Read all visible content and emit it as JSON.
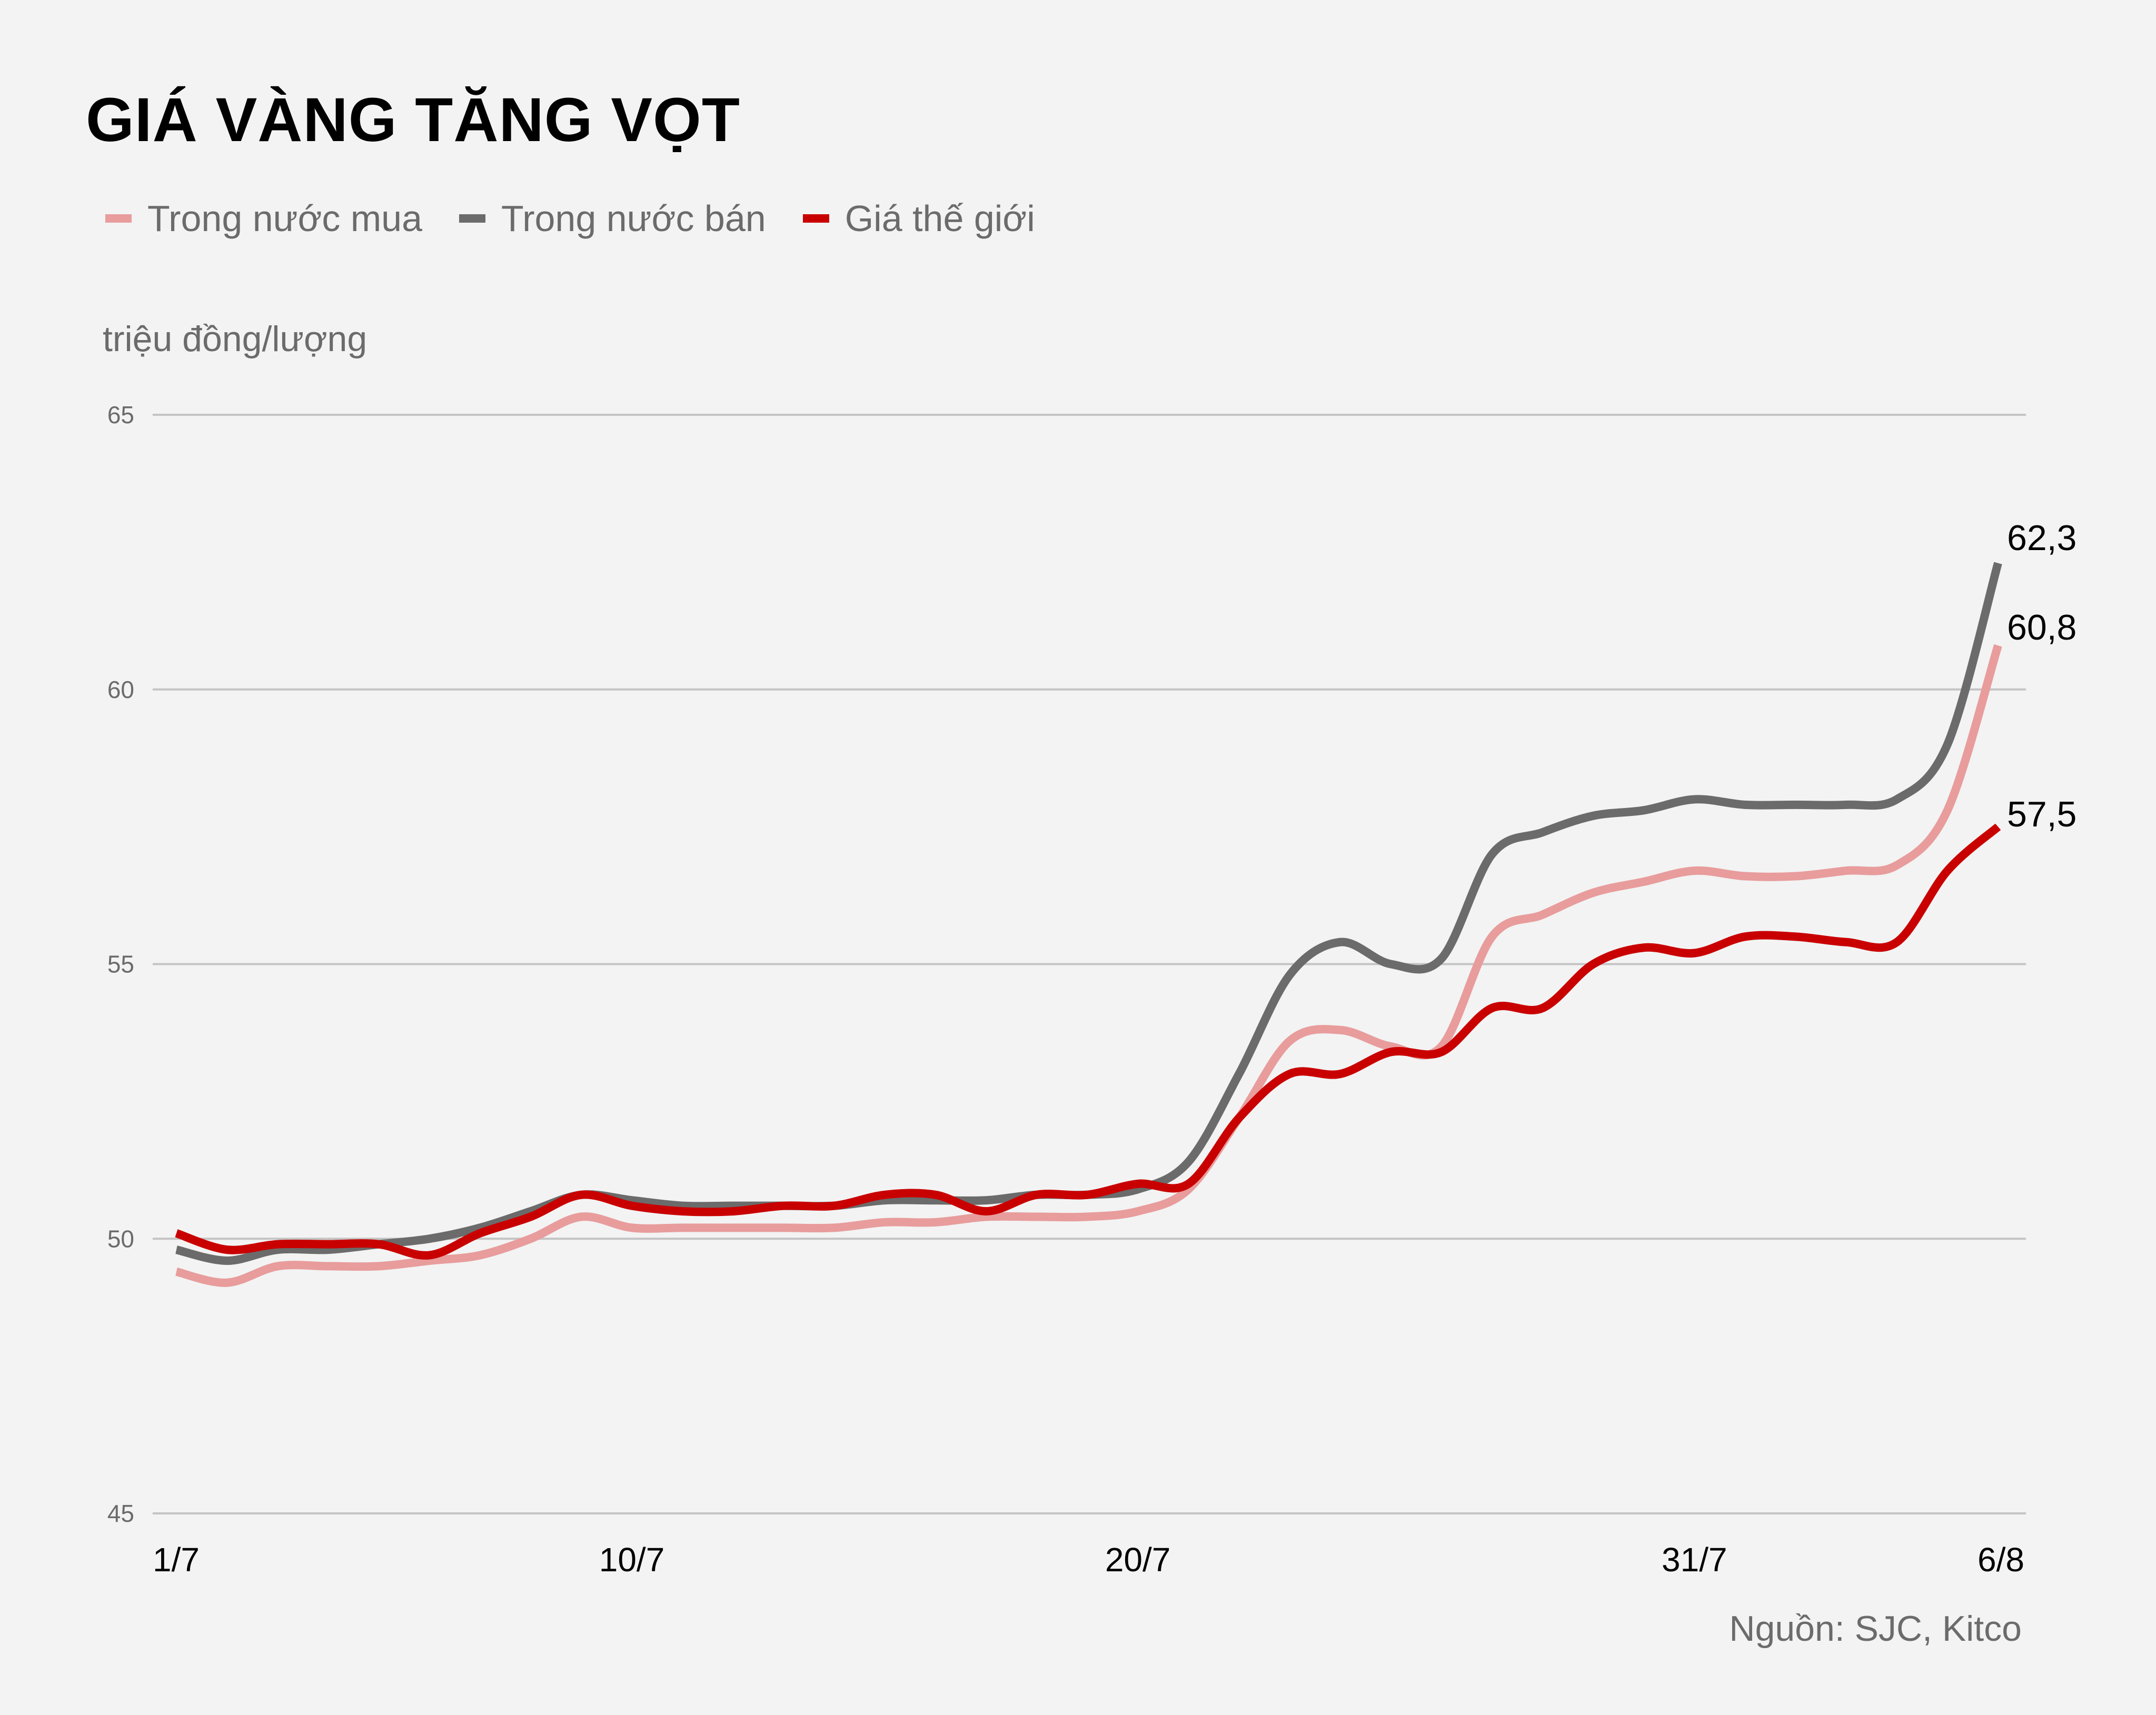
{
  "title": "GIÁ VÀNG TĂNG VỌT",
  "legend": [
    {
      "label": "Trong nước mua",
      "color": "#e89c9c"
    },
    {
      "label": "Trong nước bán",
      "color": "#6b6b6b"
    },
    {
      "label": "Giá thế giới",
      "color": "#c90000"
    }
  ],
  "unit_label": "triệu đồng/lượng",
  "source": "Nguồn: SJC, Kitco",
  "chart_data": {
    "type": "line",
    "title": "GIÁ VÀNG TĂNG VỌT",
    "ylabel": "triệu đồng/lượng",
    "xlabel": "",
    "ylim": [
      45,
      65
    ],
    "yticks": [
      45,
      50,
      55,
      60,
      65
    ],
    "grid": true,
    "legend_position": "top",
    "x_tick_labels": [
      {
        "label": "1/7",
        "day": 0
      },
      {
        "label": "10/7",
        "day": 9
      },
      {
        "label": "20/7",
        "day": 19
      },
      {
        "label": "31/7",
        "day": 30
      },
      {
        "label": "6/8",
        "day": 36
      }
    ],
    "x": [
      "1/7",
      "2/7",
      "3/7",
      "4/7",
      "5/7",
      "6/7",
      "7/7",
      "8/7",
      "9/7",
      "10/7",
      "11/7",
      "12/7",
      "13/7",
      "14/7",
      "15/7",
      "16/7",
      "17/7",
      "18/7",
      "19/7",
      "20/7",
      "21/7",
      "22/7",
      "23/7",
      "24/7",
      "25/7",
      "26/7",
      "27/7",
      "28/7",
      "29/7",
      "30/7",
      "31/7",
      "1/8",
      "2/8",
      "3/8",
      "4/8",
      "5/8",
      "6/8"
    ],
    "series": [
      {
        "name": "Trong nước mua",
        "color": "#e89c9c",
        "end_label": "60,8",
        "values": [
          49.4,
          49.2,
          49.5,
          49.5,
          49.5,
          49.6,
          49.7,
          50.0,
          50.4,
          50.2,
          50.2,
          50.2,
          50.2,
          50.2,
          50.3,
          50.3,
          50.4,
          50.4,
          50.4,
          50.5,
          50.9,
          52.2,
          53.6,
          53.8,
          53.5,
          53.5,
          55.5,
          55.9,
          56.3,
          56.5,
          56.7,
          56.6,
          56.6,
          56.7,
          56.8,
          57.8,
          60.8
        ]
      },
      {
        "name": "Trong nước bán",
        "color": "#6b6b6b",
        "end_label": "62,3",
        "values": [
          49.8,
          49.6,
          49.8,
          49.8,
          49.9,
          50.0,
          50.2,
          50.5,
          50.8,
          50.7,
          50.6,
          50.6,
          50.6,
          50.6,
          50.7,
          50.7,
          50.7,
          50.8,
          50.8,
          50.9,
          51.4,
          53.0,
          54.8,
          55.4,
          55.0,
          55.1,
          57.0,
          57.4,
          57.7,
          57.8,
          58.0,
          57.9,
          57.9,
          57.9,
          58.0,
          59.0,
          62.3
        ]
      },
      {
        "name": "Giá thế giới",
        "color": "#c90000",
        "end_label": "57,5",
        "values": [
          50.1,
          49.8,
          49.9,
          49.9,
          49.9,
          49.7,
          50.1,
          50.4,
          50.8,
          50.6,
          50.5,
          50.5,
          50.6,
          50.6,
          50.8,
          50.8,
          50.5,
          50.8,
          50.8,
          51.0,
          51.0,
          52.2,
          53.0,
          53.0,
          53.4,
          53.4,
          54.2,
          54.2,
          55.0,
          55.3,
          55.2,
          55.5,
          55.5,
          55.4,
          55.4,
          56.7,
          57.5
        ]
      }
    ]
  }
}
